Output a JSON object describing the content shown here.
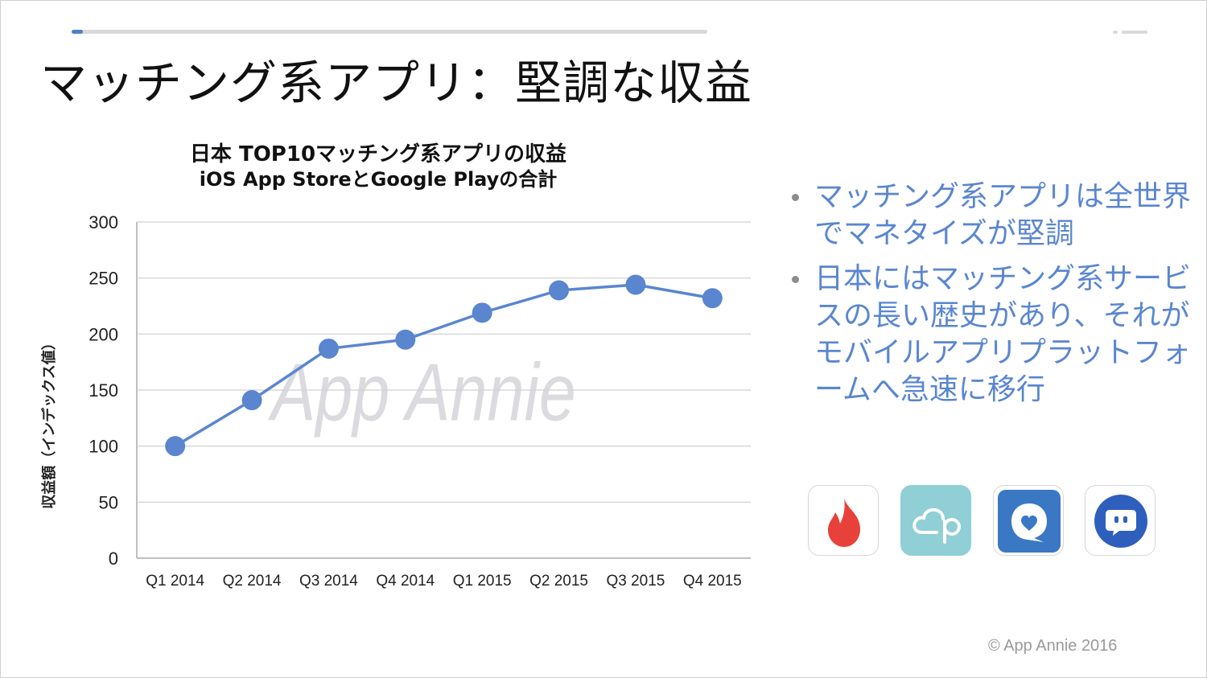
{
  "slide": {
    "title": "マッチング系アプリ：堅調な収益",
    "copyright": "© App Annie 2016"
  },
  "chart_data": {
    "type": "line",
    "title": "日本 TOP10マッチング系アプリの収益",
    "subtitle": "iOS App StoreとGoogle Playの合計",
    "ylabel": "収益額（インデックス値）",
    "xlabel": "",
    "categories": [
      "Q1 2014",
      "Q2 2014",
      "Q3 2014",
      "Q4 2014",
      "Q1 2015",
      "Q2 2015",
      "Q3 2015",
      "Q4 2015"
    ],
    "series": [
      {
        "values": [
          100,
          141,
          187,
          195,
          219,
          239,
          244,
          232
        ]
      }
    ],
    "ylim": [
      0,
      300
    ],
    "yticks": [
      0,
      50,
      100,
      150,
      200,
      250,
      300
    ],
    "grid": true,
    "legend": "none",
    "watermark": "App Annie",
    "colors": {
      "line": "#5a86d0",
      "grid": "#d9d9d9",
      "watermark": "#cfcfd4"
    }
  },
  "bullets": [
    "マッチング系アプリは全世界でマネタイズが堅調",
    "日本にはマッチング系サービスの長い歴史があり、それがモバイルアプリプラットフォームへ急速に移行"
  ],
  "app_icons": [
    {
      "name": "flame-app-icon",
      "color": "#e8413c"
    },
    {
      "name": "cloud-p-app-icon",
      "color": "#8fcfd5"
    },
    {
      "name": "heart-bubble-app-icon",
      "color": "#3a78c4"
    },
    {
      "name": "chat-bubble-app-icon",
      "color": "#2f5fbd"
    }
  ]
}
